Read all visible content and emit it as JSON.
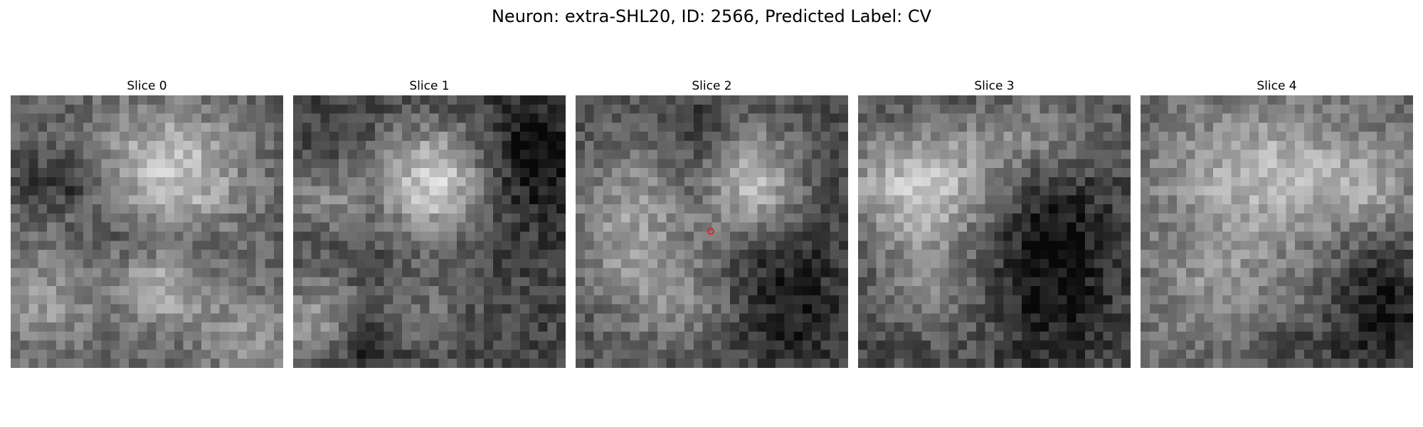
{
  "figure": {
    "title": "Neuron: extra-SHL20, ID: 2566, Predicted Label: CV"
  },
  "panels": [
    {
      "title": "Slice 0"
    },
    {
      "title": "Slice 1"
    },
    {
      "title": "Slice 2"
    },
    {
      "title": "Slice 3"
    },
    {
      "title": "Slice 4"
    }
  ],
  "marker": {
    "panel": 2,
    "shape": "circle",
    "color": "#d62728"
  },
  "colormap": "gray"
}
